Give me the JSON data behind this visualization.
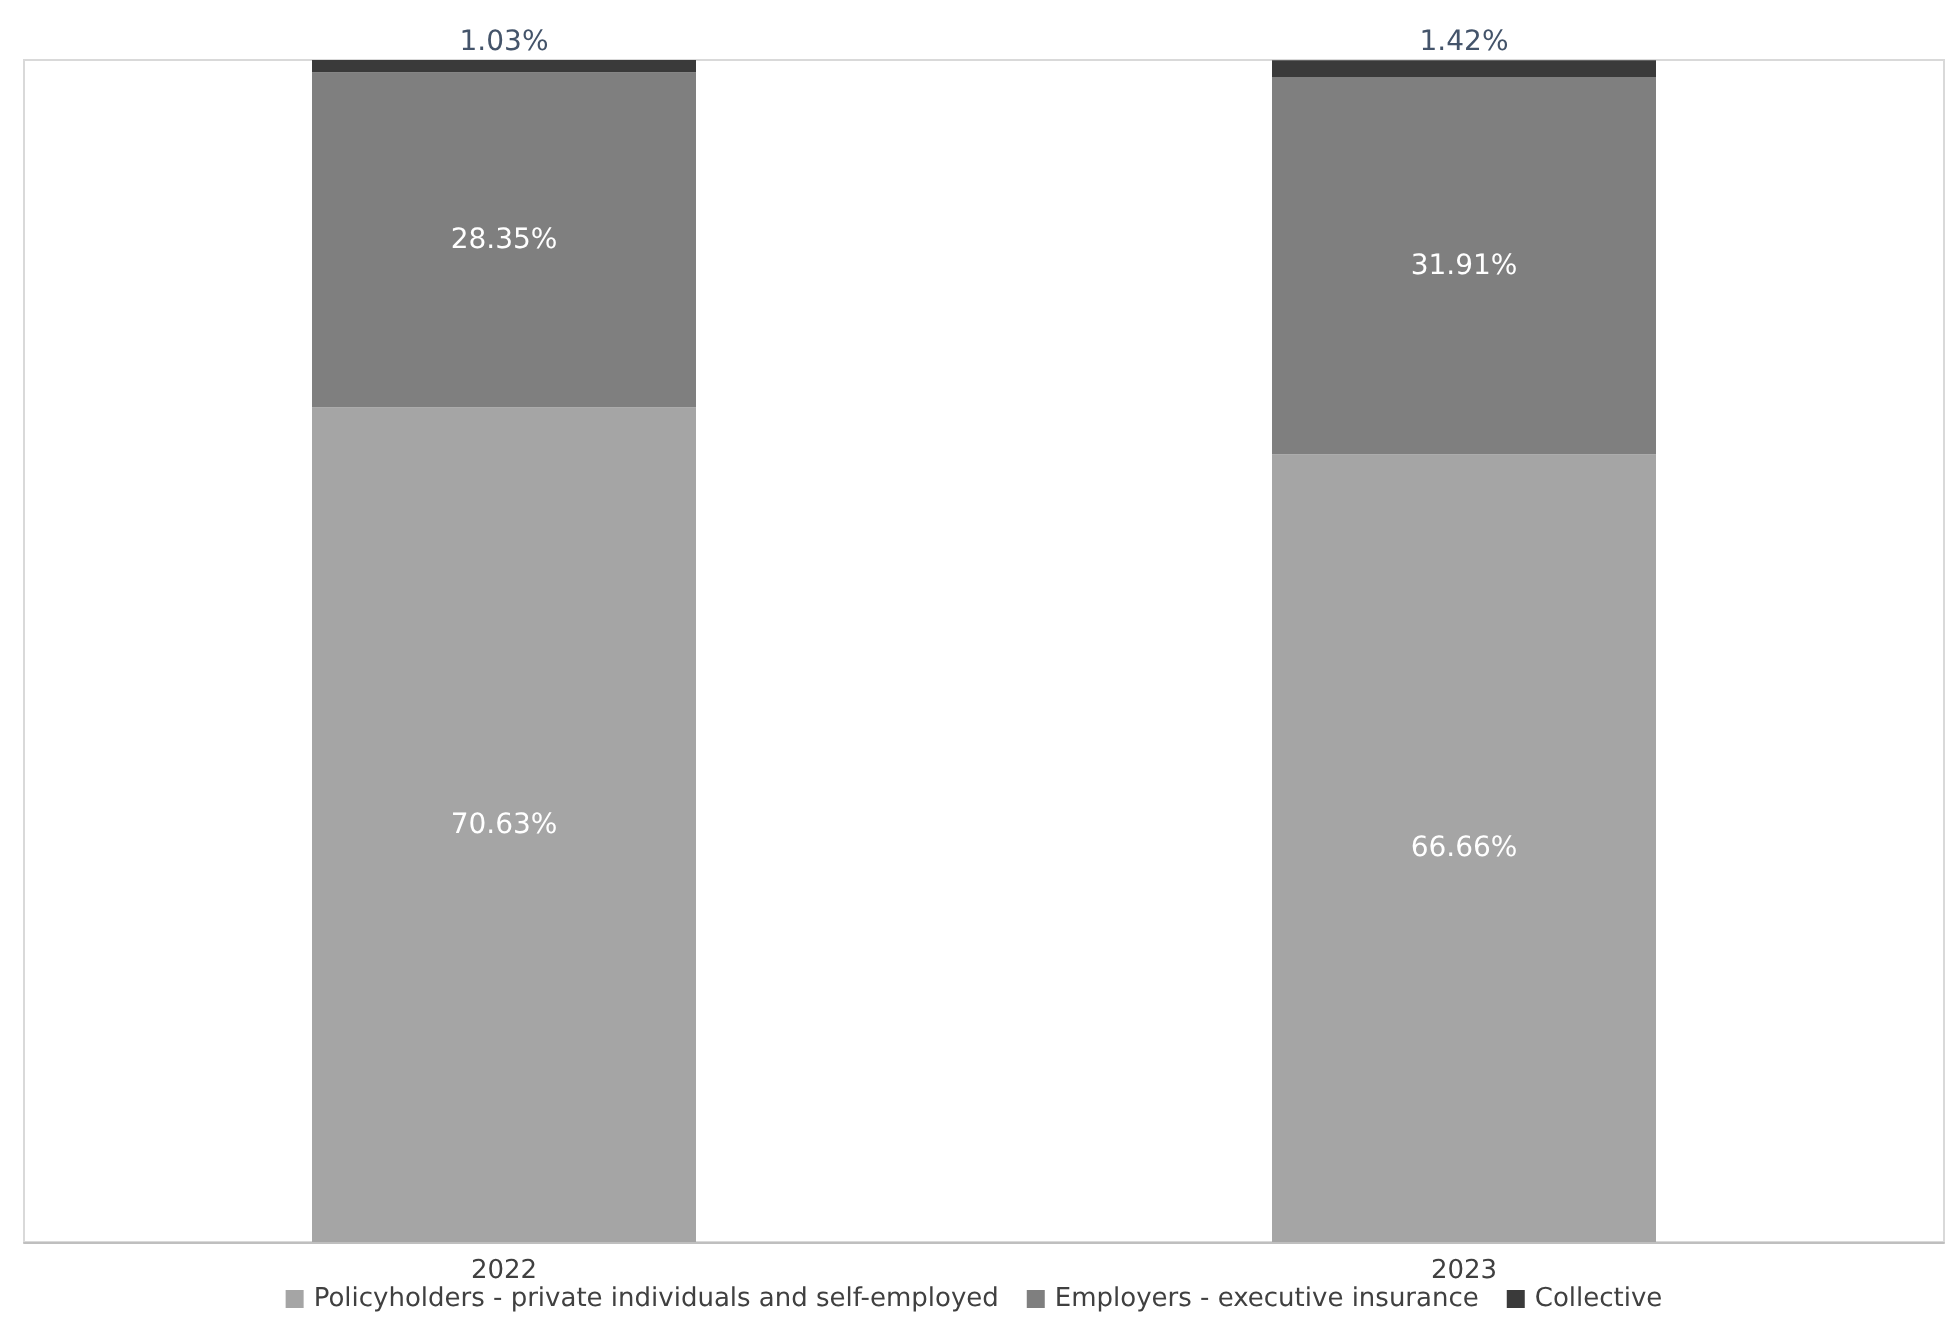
{
  "chart_data": {
    "type": "bar",
    "stacked": true,
    "categories": [
      "2022",
      "2023"
    ],
    "series": [
      {
        "name": "Policyholders - private individuals and self-employed",
        "color": "#a5a5a5",
        "values": [
          70.63,
          66.66
        ],
        "value_labels": [
          "70.63%",
          "66.66%"
        ]
      },
      {
        "name": "Employers - executive insurance",
        "color": "#7f7f7f",
        "values": [
          28.35,
          31.91
        ],
        "value_labels": [
          "28.35%",
          "31.91%"
        ]
      },
      {
        "name": "Collective",
        "color": "#3a3a3a",
        "values": [
          1.03,
          1.42
        ],
        "value_labels": [
          "1.03%",
          "1.42%"
        ]
      }
    ],
    "tick_labels": "x",
    "legend": "bottom"
  }
}
